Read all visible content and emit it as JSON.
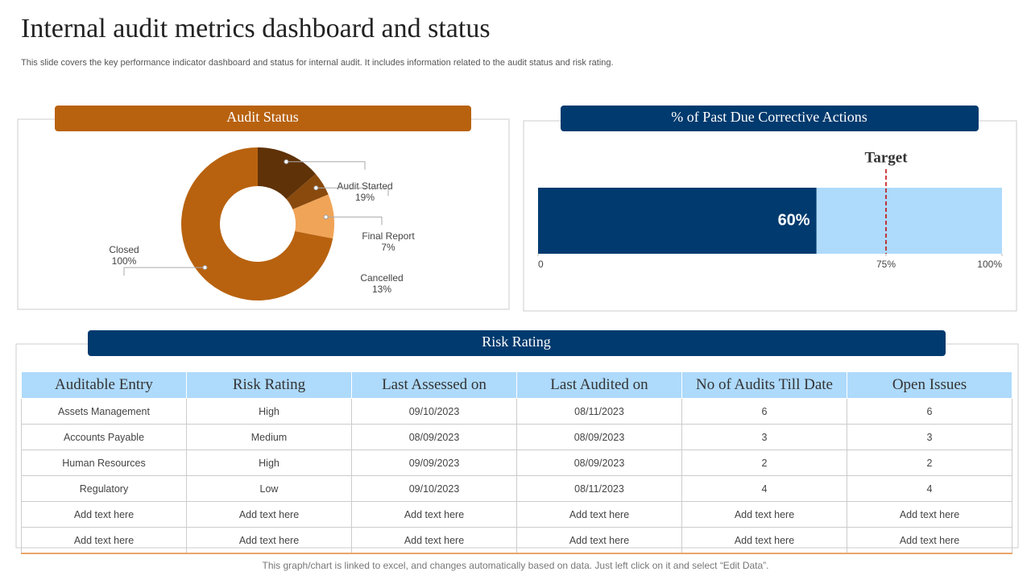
{
  "title": "Internal audit metrics dashboard and status",
  "subtitle": "This slide covers the key performance indicator dashboard and status for internal audit. It includes information related to the audit status and risk rating.",
  "chart_data": [
    {
      "type": "pie",
      "title": "Audit Status",
      "categories": [
        "Audit Started",
        "Final Report",
        "Cancelled",
        "Closed"
      ],
      "values": [
        19,
        7,
        13,
        100
      ],
      "value_labels": [
        "19%",
        "7%",
        "13%",
        "100%"
      ],
      "colors": [
        "#5f3208",
        "#8a4a0e",
        "#f0a458",
        "#b8620f"
      ]
    },
    {
      "type": "bullet",
      "title": "% of Past Due Corrective Actions",
      "values": [
        60
      ],
      "value_labels": [
        "60%"
      ],
      "color": "#003a6e",
      "background": "#aedafc",
      "target": 75,
      "target_label": "Target",
      "xlim": [
        0,
        100
      ],
      "xticks": [
        0,
        {
          "value": 75,
          "label": "75%"
        },
        {
          "value": 100,
          "label": "100%"
        }
      ]
    }
  ],
  "table": {
    "title": "Risk Rating",
    "columns": [
      "Auditable Entry",
      "Risk Rating",
      "Last Assessed on",
      "Last Audited on",
      "No of Audits Till Date",
      "Open Issues"
    ],
    "rows": [
      [
        "Assets Management",
        "High",
        "09/10/2023",
        "08/11/2023",
        6,
        6
      ],
      [
        "Accounts Payable",
        "Medium",
        "08/09/2023",
        "08/09/2023",
        3,
        3
      ],
      [
        "Human Resources",
        "High",
        "09/09/2023",
        "08/09/2023",
        2,
        2
      ],
      [
        "Regulatory",
        "Low",
        "09/10/2023",
        "08/11/2023",
        4,
        4
      ],
      [
        "Add text here",
        "Add text here",
        "Add text here",
        "Add text here",
        "Add text here",
        "Add text here"
      ],
      [
        "Add text here",
        "Add text here",
        "Add text here",
        "Add text here",
        "Add text here",
        "Add text here"
      ]
    ]
  },
  "footer": "This graph/chart is linked to excel, and changes automatically based on data. Just left click on it and select “Edit Data”."
}
